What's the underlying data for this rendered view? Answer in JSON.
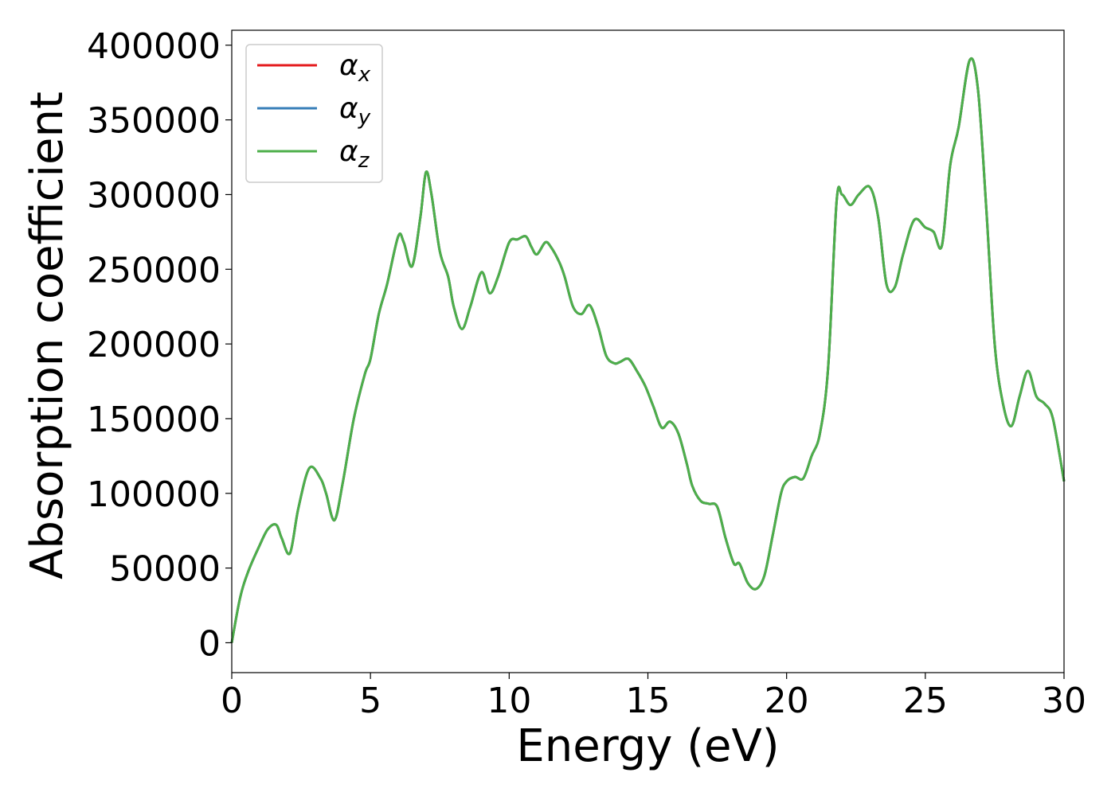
{
  "chart_data": {
    "type": "line",
    "title": "",
    "xlabel": "Energy (eV)",
    "ylabel": "Absorption coefficient",
    "xlim": [
      0,
      30
    ],
    "ylim": [
      -20000,
      410000
    ],
    "xticks": [
      0,
      5,
      10,
      15,
      20,
      25,
      30
    ],
    "xtick_labels": [
      "0",
      "5",
      "10",
      "15",
      "20",
      "25",
      "30"
    ],
    "yticks": [
      0,
      50000,
      100000,
      150000,
      200000,
      250000,
      300000,
      350000,
      400000
    ],
    "ytick_labels": [
      "0",
      "50000",
      "100000",
      "150000",
      "200000",
      "250000",
      "300000",
      "350000",
      "400000"
    ],
    "grid": false,
    "legend_position": "top-left",
    "x": [
      0,
      0.3,
      0.6,
      1.0,
      1.3,
      1.6,
      1.8,
      2.1,
      2.4,
      2.8,
      3.2,
      3.4,
      3.7,
      4.0,
      4.4,
      4.8,
      5.0,
      5.3,
      5.6,
      6.0,
      6.2,
      6.5,
      6.8,
      7.0,
      7.2,
      7.5,
      7.8,
      8.0,
      8.3,
      8.6,
      9.0,
      9.3,
      9.6,
      10.0,
      10.3,
      10.6,
      10.8,
      11.0,
      11.3,
      11.5,
      11.8,
      12.0,
      12.3,
      12.6,
      12.9,
      13.2,
      13.5,
      13.8,
      14.0,
      14.3,
      14.6,
      14.9,
      15.2,
      15.5,
      15.8,
      16.1,
      16.4,
      16.6,
      16.9,
      17.2,
      17.5,
      17.8,
      18.1,
      18.3,
      18.6,
      18.9,
      19.2,
      19.5,
      19.8,
      20.0,
      20.3,
      20.6,
      20.9,
      21.2,
      21.5,
      21.8,
      22.0,
      22.3,
      22.6,
      23.0,
      23.3,
      23.6,
      23.9,
      24.2,
      24.6,
      25.0,
      25.3,
      25.6,
      25.9,
      26.2,
      26.6,
      26.9,
      27.2,
      27.5,
      27.8,
      28.1,
      28.4,
      28.7,
      29.0,
      29.3,
      29.6,
      30.0
    ],
    "series": [
      {
        "name": "α_x",
        "color": "#e41a1c",
        "values": [
          0,
          30000,
          48000,
          65000,
          76000,
          79000,
          70000,
          60000,
          90000,
          117000,
          110000,
          100000,
          82000,
          107000,
          150000,
          180000,
          190000,
          220000,
          240000,
          272000,
          268000,
          252000,
          285000,
          315000,
          300000,
          262000,
          245000,
          225000,
          210000,
          225000,
          248000,
          234000,
          245000,
          268000,
          270000,
          272000,
          265000,
          260000,
          268000,
          265000,
          255000,
          245000,
          225000,
          220000,
          226000,
          212000,
          192000,
          187000,
          188000,
          190000,
          182000,
          172000,
          158000,
          144000,
          148000,
          140000,
          120000,
          105000,
          95000,
          93000,
          91000,
          70000,
          53000,
          53000,
          40000,
          36000,
          45000,
          72000,
          100000,
          108000,
          111000,
          110000,
          125000,
          140000,
          185000,
          295000,
          300000,
          293000,
          300000,
          305000,
          285000,
          240000,
          238000,
          260000,
          283000,
          278000,
          275000,
          266000,
          320000,
          345000,
          390000,
          370000,
          290000,
          200000,
          160000,
          145000,
          165000,
          182000,
          165000,
          160000,
          150000,
          108000
        ]
      },
      {
        "name": "α_y",
        "color": "#377eb8",
        "values": [
          0,
          30000,
          48000,
          65000,
          76000,
          79000,
          70000,
          60000,
          90000,
          117000,
          110000,
          100000,
          82000,
          107000,
          150000,
          180000,
          190000,
          220000,
          240000,
          272000,
          268000,
          252000,
          285000,
          315000,
          300000,
          262000,
          245000,
          225000,
          210000,
          225000,
          248000,
          234000,
          245000,
          268000,
          270000,
          272000,
          265000,
          260000,
          268000,
          265000,
          255000,
          245000,
          225000,
          220000,
          226000,
          212000,
          192000,
          187000,
          188000,
          190000,
          182000,
          172000,
          158000,
          144000,
          148000,
          140000,
          120000,
          105000,
          95000,
          93000,
          91000,
          70000,
          53000,
          53000,
          40000,
          36000,
          45000,
          72000,
          100000,
          108000,
          111000,
          110000,
          125000,
          140000,
          185000,
          295000,
          300000,
          293000,
          300000,
          305000,
          285000,
          240000,
          238000,
          260000,
          283000,
          278000,
          275000,
          266000,
          320000,
          345000,
          390000,
          370000,
          290000,
          200000,
          160000,
          145000,
          165000,
          182000,
          165000,
          160000,
          150000,
          108000
        ]
      },
      {
        "name": "α_z",
        "color": "#4daf4a",
        "values": [
          0,
          30000,
          48000,
          65000,
          76000,
          79000,
          70000,
          60000,
          90000,
          117000,
          110000,
          100000,
          82000,
          107000,
          150000,
          180000,
          190000,
          220000,
          240000,
          272000,
          268000,
          252000,
          285000,
          315000,
          300000,
          262000,
          245000,
          225000,
          210000,
          225000,
          248000,
          234000,
          245000,
          268000,
          270000,
          272000,
          265000,
          260000,
          268000,
          265000,
          255000,
          245000,
          225000,
          220000,
          226000,
          212000,
          192000,
          187000,
          188000,
          190000,
          182000,
          172000,
          158000,
          144000,
          148000,
          140000,
          120000,
          105000,
          95000,
          93000,
          91000,
          70000,
          53000,
          53000,
          40000,
          36000,
          45000,
          72000,
          100000,
          108000,
          111000,
          110000,
          125000,
          140000,
          185000,
          295000,
          300000,
          293000,
          300000,
          305000,
          285000,
          240000,
          238000,
          260000,
          283000,
          278000,
          275000,
          266000,
          320000,
          345000,
          390000,
          370000,
          290000,
          200000,
          160000,
          145000,
          165000,
          182000,
          165000,
          160000,
          150000,
          108000
        ]
      }
    ],
    "legend": [
      {
        "symbol": "α",
        "subscript": "x",
        "color": "#e41a1c"
      },
      {
        "symbol": "α",
        "subscript": "y",
        "color": "#377eb8"
      },
      {
        "symbol": "α",
        "subscript": "z",
        "color": "#4daf4a"
      }
    ]
  }
}
